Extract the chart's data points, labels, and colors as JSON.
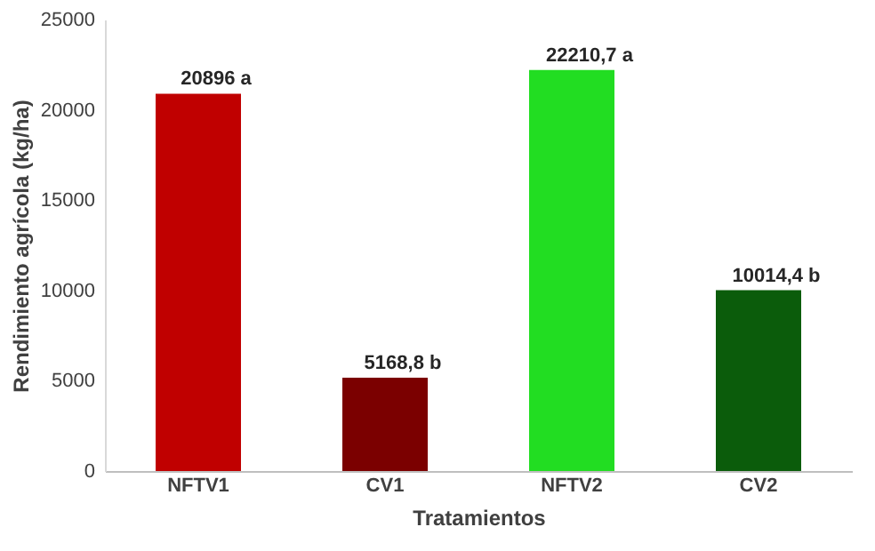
{
  "chart_data": {
    "type": "bar",
    "xlabel": "Tratamientos",
    "ylabel": "Rendimiento agrícola (kg/ha)",
    "categories": [
      "NFTV1",
      "CV1",
      "NFTV2",
      "CV2"
    ],
    "values": [
      20896,
      5168.8,
      22210.7,
      10014.4
    ],
    "value_labels": [
      "20896 a",
      "5168,8 b",
      "22210,7 a",
      "10014,4 b"
    ],
    "colors": [
      "#c00000",
      "#7b0000",
      "#22dd22",
      "#0b5c0b"
    ],
    "ylim": [
      0,
      25000
    ],
    "yticks": [
      0,
      5000,
      10000,
      15000,
      20000,
      25000
    ],
    "grid": false
  }
}
